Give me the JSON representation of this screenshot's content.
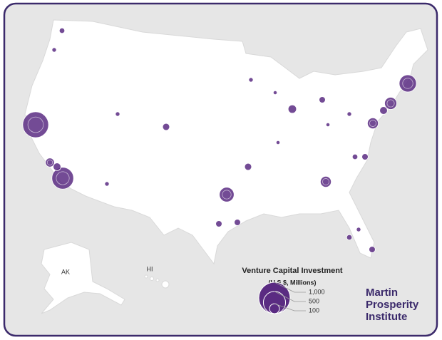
{
  "labels": {
    "alaska": "AK",
    "hawaii": "HI"
  },
  "legend": {
    "title": "Venture Capital Investment",
    "subtitle": "(U.S.$, Millions)",
    "sizes": [
      {
        "value": 1000,
        "label": "1,000"
      },
      500,
      100
    ]
  },
  "bubbles": {
    "color": "#5a2b82",
    "values": [
      680,
      480,
      80,
      60,
      30,
      20,
      300,
      150,
      120,
      60,
      220,
      50,
      20,
      70,
      40,
      20,
      120,
      40,
      30,
      50,
      40,
      40,
      40,
      30,
      20,
      20,
      20,
      15,
      15,
      15
    ]
  },
  "institute": [
    "Martin",
    "Prosperity",
    "Institute"
  ]
}
